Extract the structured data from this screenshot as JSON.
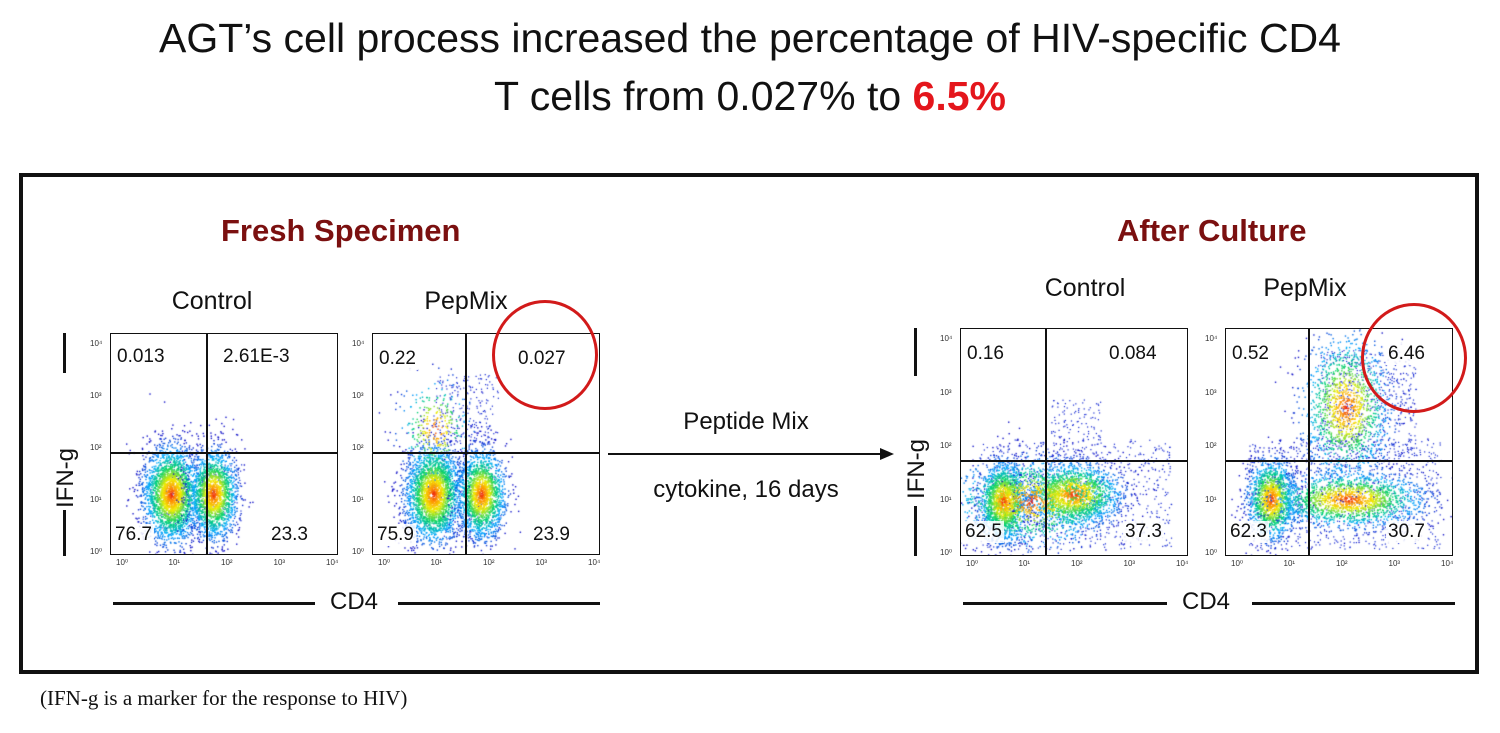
{
  "title": {
    "line1": "AGT’s cell process increased the percentage of HIV-specific CD4",
    "line2_prefix": "T cells from 0.027% to ",
    "line2_highlight": "6.5%"
  },
  "groups": {
    "fresh": "Fresh Specimen",
    "after": "After Culture"
  },
  "axes": {
    "x": "CD4",
    "y": "IFN-g",
    "ticks": [
      "10⁰",
      "10¹",
      "10²",
      "10³",
      "10⁴"
    ]
  },
  "arrow": {
    "top_label": "Peptide Mix",
    "bottom_label": "cytokine,  16 days"
  },
  "footnote": "(IFN-g is a marker for the response to HIV)",
  "colors": {
    "highlight": "#e4161c",
    "group_title": "#7b1010",
    "circle": "#d21a1a"
  },
  "chart_data": [
    {
      "type": "scatter",
      "panel": "Fresh Specimen",
      "label": "Control",
      "xlabel": "CD4",
      "ylabel": "IFN-g",
      "scale": "log",
      "xlim": [
        1,
        10000
      ],
      "ylim": [
        1,
        10000
      ],
      "quadrants": {
        "upper_left": "0.013",
        "upper_right": "2.61E-3",
        "lower_left": "76.7",
        "lower_right": "23.3"
      },
      "highlighted": false
    },
    {
      "type": "scatter",
      "panel": "Fresh Specimen",
      "label": "PepMix",
      "xlabel": "CD4",
      "ylabel": "IFN-g",
      "scale": "log",
      "xlim": [
        1,
        10000
      ],
      "ylim": [
        1,
        10000
      ],
      "quadrants": {
        "upper_left": "0.22",
        "upper_right": "0.027",
        "lower_left": "75.9",
        "lower_right": "23.9"
      },
      "highlighted": true
    },
    {
      "type": "scatter",
      "panel": "After Culture",
      "label": "Control",
      "xlabel": "CD4",
      "ylabel": "IFN-g",
      "scale": "log",
      "xlim": [
        1,
        10000
      ],
      "ylim": [
        1,
        10000
      ],
      "quadrants": {
        "upper_left": "0.16",
        "upper_right": "0.084",
        "lower_left": "62.5",
        "lower_right": "37.3"
      },
      "highlighted": false
    },
    {
      "type": "scatter",
      "panel": "After Culture",
      "label": "PepMix",
      "xlabel": "CD4",
      "ylabel": "IFN-g",
      "scale": "log",
      "xlim": [
        1,
        10000
      ],
      "ylim": [
        1,
        10000
      ],
      "quadrants": {
        "upper_left": "0.52",
        "upper_right": "6.46",
        "lower_left": "62.3",
        "lower_right": "30.7"
      },
      "highlighted": true
    }
  ]
}
